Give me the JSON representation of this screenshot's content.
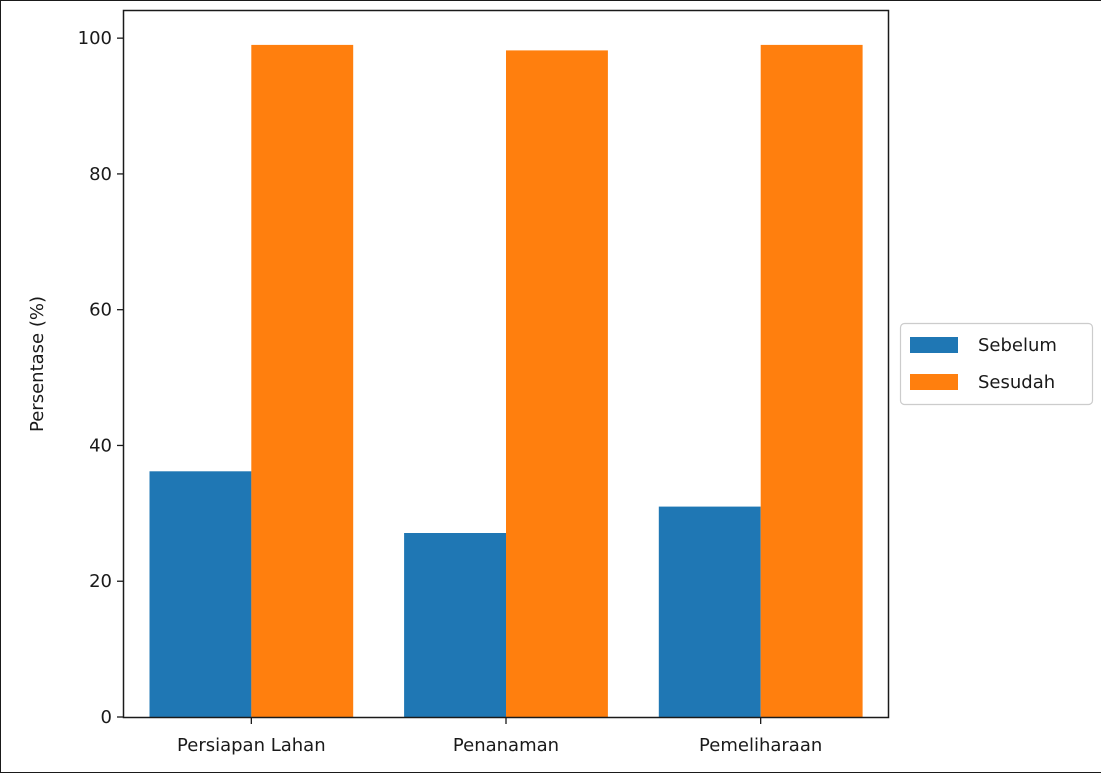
{
  "chart_data": {
    "type": "bar",
    "categories": [
      "Persiapan Lahan",
      "Penanaman",
      "Pemeliharaan"
    ],
    "series": [
      {
        "name": "Sebelum",
        "values": [
          36.2,
          27.1,
          31.0
        ],
        "color": "#1f77b4"
      },
      {
        "name": "Sesudah",
        "values": [
          99.0,
          98.2,
          99.0
        ],
        "color": "#ff7f0e"
      }
    ],
    "title": "",
    "xlabel": "",
    "ylabel": "Persentase (%)",
    "ylim": [
      0,
      104.0
    ],
    "yticks": [
      0,
      20,
      40,
      60,
      80,
      100
    ],
    "grid": false,
    "legend_position": "outside-right"
  }
}
